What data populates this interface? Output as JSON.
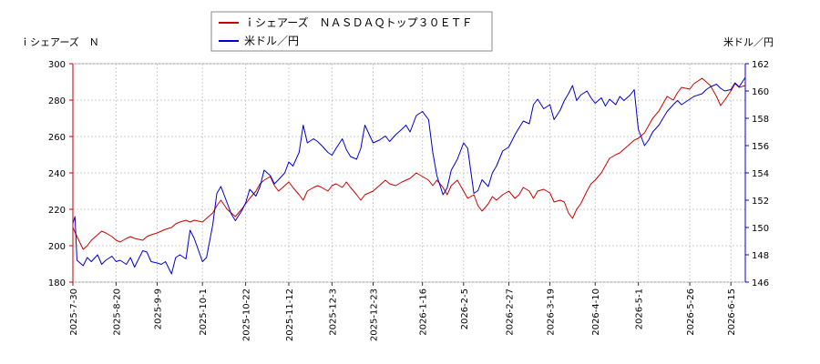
{
  "chart_data": {
    "type": "line",
    "title": "",
    "left_axis_label": "ｉシェアーズ　Ｎ",
    "right_axis_label": "米ドル／円",
    "x_ticks": [
      "2025-7-30",
      "2025-8-20",
      "2025-9-9",
      "2025-10-1",
      "2025-10-22",
      "2025-11-12",
      "2025-12-3",
      "2025-12-23",
      "2026-1-16",
      "2026-2-5",
      "2026-2-27",
      "2026-3-19",
      "2026-4-10",
      "2026-5-1",
      "2026-5-26",
      "2026-6-15"
    ],
    "x_range": [
      "2025-7-30",
      "2026-6-22"
    ],
    "ylim_left": [
      180,
      300
    ],
    "yticks_left": [
      180,
      200,
      220,
      240,
      260,
      280,
      300
    ],
    "ylim_right": [
      146,
      162
    ],
    "yticks_right": [
      146,
      148,
      150,
      152,
      154,
      156,
      158,
      160,
      162
    ],
    "grid": true,
    "legend_position": "top-center",
    "series": [
      {
        "name": "ｉシェアーズ　ＮＡＳＤＡＱトップ３０ＥＴＦ",
        "axis": "left",
        "color": "#cc0000",
        "points": [
          [
            "2025-7-30",
            210
          ],
          [
            "2025-8-1",
            205
          ],
          [
            "2025-8-4",
            198
          ],
          [
            "2025-8-6",
            200
          ],
          [
            "2025-8-8",
            203
          ],
          [
            "2025-8-11",
            206
          ],
          [
            "2025-8-13",
            208
          ],
          [
            "2025-8-15",
            207
          ],
          [
            "2025-8-18",
            205
          ],
          [
            "2025-8-20",
            203
          ],
          [
            "2025-8-22",
            202
          ],
          [
            "2025-8-25",
            204
          ],
          [
            "2025-8-27",
            205
          ],
          [
            "2025-8-29",
            204
          ],
          [
            "2025-9-2",
            203
          ],
          [
            "2025-9-4",
            205
          ],
          [
            "2025-9-6",
            206
          ],
          [
            "2025-9-9",
            207
          ],
          [
            "2025-9-11",
            208
          ],
          [
            "2025-9-13",
            209
          ],
          [
            "2025-9-16",
            210
          ],
          [
            "2025-9-18",
            212
          ],
          [
            "2025-9-20",
            213
          ],
          [
            "2025-9-23",
            214
          ],
          [
            "2025-9-25",
            213
          ],
          [
            "2025-9-27",
            214
          ],
          [
            "2025-10-1",
            213
          ],
          [
            "2025-10-3",
            215
          ],
          [
            "2025-10-6",
            218
          ],
          [
            "2025-10-8",
            222
          ],
          [
            "2025-10-10",
            225
          ],
          [
            "2025-10-13",
            220
          ],
          [
            "2025-10-15",
            218
          ],
          [
            "2025-10-17",
            216
          ],
          [
            "2025-10-20",
            220
          ],
          [
            "2025-10-22",
            223
          ],
          [
            "2025-10-24",
            226
          ],
          [
            "2025-10-27",
            230
          ],
          [
            "2025-10-29",
            234
          ],
          [
            "2025-10-31",
            236
          ],
          [
            "2025-11-3",
            238
          ],
          [
            "2025-11-5",
            233
          ],
          [
            "2025-11-7",
            230
          ],
          [
            "2025-11-10",
            233
          ],
          [
            "2025-11-12",
            235
          ],
          [
            "2025-11-14",
            232
          ],
          [
            "2025-11-17",
            228
          ],
          [
            "2025-11-19",
            225
          ],
          [
            "2025-11-21",
            230
          ],
          [
            "2025-11-24",
            232
          ],
          [
            "2025-11-26",
            233
          ],
          [
            "2025-11-28",
            232
          ],
          [
            "2025-12-1",
            230
          ],
          [
            "2025-12-3",
            233
          ],
          [
            "2025-12-5",
            234
          ],
          [
            "2025-12-8",
            232
          ],
          [
            "2025-12-10",
            235
          ],
          [
            "2025-12-12",
            232
          ],
          [
            "2025-12-15",
            228
          ],
          [
            "2025-12-17",
            225
          ],
          [
            "2025-12-19",
            228
          ],
          [
            "2025-12-23",
            230
          ],
          [
            "2025-12-26",
            233
          ],
          [
            "2025-12-29",
            236
          ],
          [
            "2025-12-31",
            234
          ],
          [
            "2026-1-3",
            233
          ],
          [
            "2026-1-6",
            235
          ],
          [
            "2026-1-8",
            236
          ],
          [
            "2026-1-10",
            237
          ],
          [
            "2026-1-13",
            240
          ],
          [
            "2026-1-16",
            238
          ],
          [
            "2026-1-19",
            236
          ],
          [
            "2026-1-21",
            233
          ],
          [
            "2026-1-23",
            236
          ],
          [
            "2026-1-26",
            232
          ],
          [
            "2026-1-28",
            228
          ],
          [
            "2026-1-30",
            233
          ],
          [
            "2026-2-2",
            236
          ],
          [
            "2026-2-5",
            230
          ],
          [
            "2026-2-7",
            226
          ],
          [
            "2026-2-10",
            228
          ],
          [
            "2026-2-12",
            222
          ],
          [
            "2026-2-14",
            219
          ],
          [
            "2026-2-17",
            223
          ],
          [
            "2026-2-19",
            227
          ],
          [
            "2026-2-21",
            225
          ],
          [
            "2026-2-24",
            228
          ],
          [
            "2026-2-27",
            230
          ],
          [
            "2026-3-2",
            226
          ],
          [
            "2026-3-4",
            228
          ],
          [
            "2026-3-6",
            232
          ],
          [
            "2026-3-9",
            230
          ],
          [
            "2026-3-11",
            226
          ],
          [
            "2026-3-13",
            230
          ],
          [
            "2026-3-16",
            231
          ],
          [
            "2026-3-19",
            229
          ],
          [
            "2026-3-21",
            224
          ],
          [
            "2026-3-24",
            225
          ],
          [
            "2026-3-26",
            224
          ],
          [
            "2026-3-28",
            218
          ],
          [
            "2026-3-30",
            215
          ],
          [
            "2026-4-1",
            220
          ],
          [
            "2026-4-3",
            223
          ],
          [
            "2026-4-6",
            230
          ],
          [
            "2026-4-8",
            234
          ],
          [
            "2026-4-10",
            236
          ],
          [
            "2026-4-13",
            240
          ],
          [
            "2026-4-15",
            244
          ],
          [
            "2026-4-17",
            248
          ],
          [
            "2026-4-20",
            250
          ],
          [
            "2026-4-22",
            251
          ],
          [
            "2026-4-24",
            253
          ],
          [
            "2026-4-27",
            256
          ],
          [
            "2026-4-29",
            258
          ],
          [
            "2026-5-1",
            259
          ],
          [
            "2026-5-4",
            262
          ],
          [
            "2026-5-6",
            266
          ],
          [
            "2026-5-8",
            270
          ],
          [
            "2026-5-11",
            274
          ],
          [
            "2026-5-13",
            278
          ],
          [
            "2026-5-15",
            282
          ],
          [
            "2026-5-18",
            280
          ],
          [
            "2026-5-20",
            284
          ],
          [
            "2026-5-22",
            287
          ],
          [
            "2026-5-26",
            286
          ],
          [
            "2026-5-28",
            289
          ],
          [
            "2026-6-1",
            292
          ],
          [
            "2026-6-3",
            290
          ],
          [
            "2026-6-5",
            288
          ],
          [
            "2026-6-8",
            282
          ],
          [
            "2026-6-10",
            277
          ],
          [
            "2026-6-12",
            280
          ],
          [
            "2026-6-15",
            285
          ],
          [
            "2026-6-17",
            289
          ],
          [
            "2026-6-19",
            287
          ],
          [
            "2026-6-22",
            288
          ]
        ]
      },
      {
        "name": "米ドル／円",
        "axis": "right",
        "color": "#0000cc",
        "points": [
          [
            "2025-7-30",
            150.3
          ],
          [
            "2025-7-31",
            150.8
          ],
          [
            "2025-8-1",
            147.6
          ],
          [
            "2025-8-4",
            147.2
          ],
          [
            "2025-8-6",
            147.8
          ],
          [
            "2025-8-8",
            147.5
          ],
          [
            "2025-8-11",
            148.0
          ],
          [
            "2025-8-13",
            147.3
          ],
          [
            "2025-8-15",
            147.6
          ],
          [
            "2025-8-18",
            147.9
          ],
          [
            "2025-8-20",
            147.5
          ],
          [
            "2025-8-22",
            147.6
          ],
          [
            "2025-8-25",
            147.3
          ],
          [
            "2025-8-27",
            147.8
          ],
          [
            "2025-8-29",
            147.1
          ],
          [
            "2025-9-2",
            148.3
          ],
          [
            "2025-9-4",
            148.2
          ],
          [
            "2025-9-6",
            147.5
          ],
          [
            "2025-9-9",
            147.4
          ],
          [
            "2025-9-11",
            147.3
          ],
          [
            "2025-9-13",
            147.5
          ],
          [
            "2025-9-16",
            146.6
          ],
          [
            "2025-9-18",
            147.8
          ],
          [
            "2025-9-20",
            148.0
          ],
          [
            "2025-9-23",
            147.7
          ],
          [
            "2025-9-25",
            149.8
          ],
          [
            "2025-9-27",
            149.2
          ],
          [
            "2025-10-1",
            147.5
          ],
          [
            "2025-10-3",
            147.8
          ],
          [
            "2025-10-6",
            150.2
          ],
          [
            "2025-10-8",
            152.5
          ],
          [
            "2025-10-10",
            153.0
          ],
          [
            "2025-10-13",
            151.8
          ],
          [
            "2025-10-15",
            151.0
          ],
          [
            "2025-10-17",
            150.5
          ],
          [
            "2025-10-20",
            151.2
          ],
          [
            "2025-10-22",
            151.8
          ],
          [
            "2025-10-24",
            152.8
          ],
          [
            "2025-10-27",
            152.3
          ],
          [
            "2025-10-29",
            153.0
          ],
          [
            "2025-10-31",
            154.2
          ],
          [
            "2025-11-3",
            153.8
          ],
          [
            "2025-11-5",
            153.2
          ],
          [
            "2025-11-7",
            153.5
          ],
          [
            "2025-11-10",
            154.0
          ],
          [
            "2025-11-12",
            154.8
          ],
          [
            "2025-11-14",
            154.5
          ],
          [
            "2025-11-17",
            155.5
          ],
          [
            "2025-11-19",
            157.5
          ],
          [
            "2025-11-21",
            156.2
          ],
          [
            "2025-11-24",
            156.5
          ],
          [
            "2025-11-26",
            156.3
          ],
          [
            "2025-11-28",
            156.0
          ],
          [
            "2025-12-1",
            155.5
          ],
          [
            "2025-12-3",
            155.3
          ],
          [
            "2025-12-5",
            155.8
          ],
          [
            "2025-12-8",
            156.5
          ],
          [
            "2025-12-10",
            155.7
          ],
          [
            "2025-12-12",
            155.2
          ],
          [
            "2025-12-15",
            155.0
          ],
          [
            "2025-12-17",
            155.8
          ],
          [
            "2025-12-19",
            157.5
          ],
          [
            "2025-12-23",
            156.2
          ],
          [
            "2025-12-26",
            156.4
          ],
          [
            "2025-12-29",
            156.7
          ],
          [
            "2025-12-31",
            156.3
          ],
          [
            "2026-1-3",
            156.8
          ],
          [
            "2026-1-6",
            157.2
          ],
          [
            "2026-1-8",
            157.5
          ],
          [
            "2026-1-10",
            157.0
          ],
          [
            "2026-1-13",
            158.2
          ],
          [
            "2026-1-16",
            158.5
          ],
          [
            "2026-1-19",
            157.9
          ],
          [
            "2026-1-21",
            155.5
          ],
          [
            "2026-1-23",
            153.8
          ],
          [
            "2026-1-26",
            152.4
          ],
          [
            "2026-1-28",
            152.9
          ],
          [
            "2026-1-30",
            154.2
          ],
          [
            "2026-2-2",
            155.0
          ],
          [
            "2026-2-5",
            156.2
          ],
          [
            "2026-2-7",
            155.8
          ],
          [
            "2026-2-10",
            152.5
          ],
          [
            "2026-2-12",
            152.7
          ],
          [
            "2026-2-14",
            153.5
          ],
          [
            "2026-2-17",
            153.0
          ],
          [
            "2026-2-19",
            154.0
          ],
          [
            "2026-2-21",
            154.5
          ],
          [
            "2026-2-24",
            155.6
          ],
          [
            "2026-2-27",
            155.9
          ],
          [
            "2026-3-2",
            156.8
          ],
          [
            "2026-3-4",
            157.3
          ],
          [
            "2026-3-6",
            157.8
          ],
          [
            "2026-3-9",
            157.6
          ],
          [
            "2026-3-11",
            159.0
          ],
          [
            "2026-3-13",
            159.4
          ],
          [
            "2026-3-16",
            158.7
          ],
          [
            "2026-3-19",
            159.0
          ],
          [
            "2026-3-21",
            157.9
          ],
          [
            "2026-3-24",
            158.6
          ],
          [
            "2026-3-26",
            159.3
          ],
          [
            "2026-3-28",
            159.8
          ],
          [
            "2026-3-30",
            160.4
          ],
          [
            "2026-4-1",
            159.3
          ],
          [
            "2026-4-3",
            159.7
          ],
          [
            "2026-4-6",
            160.0
          ],
          [
            "2026-4-8",
            159.5
          ],
          [
            "2026-4-10",
            159.1
          ],
          [
            "2026-4-13",
            159.5
          ],
          [
            "2026-4-15",
            158.9
          ],
          [
            "2026-4-17",
            159.4
          ],
          [
            "2026-4-20",
            159.0
          ],
          [
            "2026-4-22",
            159.6
          ],
          [
            "2026-4-24",
            159.3
          ],
          [
            "2026-4-27",
            159.7
          ],
          [
            "2026-4-29",
            160.1
          ],
          [
            "2026-5-1",
            157.2
          ],
          [
            "2026-5-4",
            156.0
          ],
          [
            "2026-5-6",
            156.4
          ],
          [
            "2026-5-8",
            157.0
          ],
          [
            "2026-5-11",
            157.5
          ],
          [
            "2026-5-13",
            158.0
          ],
          [
            "2026-5-15",
            158.5
          ],
          [
            "2026-5-18",
            159.0
          ],
          [
            "2026-5-20",
            159.3
          ],
          [
            "2026-5-22",
            159.0
          ],
          [
            "2026-5-26",
            159.4
          ],
          [
            "2026-5-28",
            159.6
          ],
          [
            "2026-6-1",
            159.8
          ],
          [
            "2026-6-3",
            160.1
          ],
          [
            "2026-6-5",
            160.3
          ],
          [
            "2026-6-8",
            160.5
          ],
          [
            "2026-6-10",
            160.2
          ],
          [
            "2026-6-12",
            160.0
          ],
          [
            "2026-6-15",
            160.1
          ],
          [
            "2026-6-17",
            160.6
          ],
          [
            "2026-6-19",
            160.3
          ],
          [
            "2026-6-22",
            161.0
          ]
        ]
      }
    ]
  }
}
